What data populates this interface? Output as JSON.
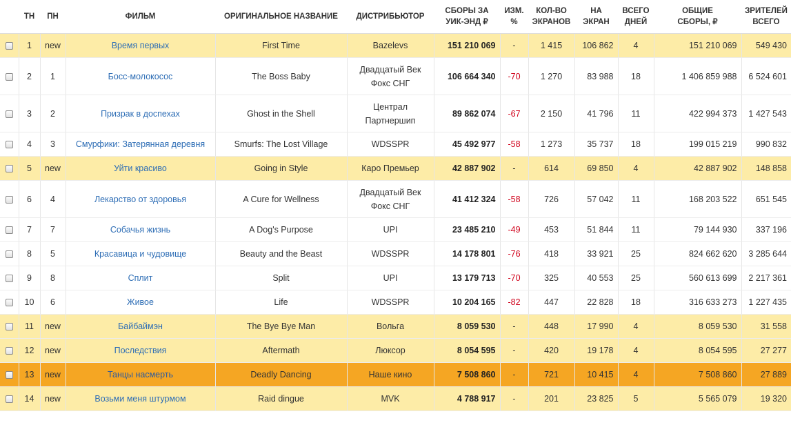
{
  "headers": {
    "tw": "ТН",
    "lw": "ПН",
    "film": "ФИЛЬМ",
    "orig": "ОРИГИНАЛЬНОЕ НАЗВАНИЕ",
    "dist": "ДИСТРИБЬЮТОР",
    "gross_l1": "СБОРЫ ЗА",
    "gross_l2": "УИК-ЭНД ₽",
    "chg_l1": "ИЗМ.",
    "chg_l2": "%",
    "screens_l1": "КОЛ-ВО",
    "screens_l2": "ЭКРАНОВ",
    "avg_l1": "НА",
    "avg_l2": "ЭКРАН",
    "days_l1": "ВСЕГО",
    "days_l2": "ДНЕЙ",
    "total_l1": "ОБЩИЕ",
    "total_l2": "СБОРЫ, ₽",
    "viewers_l1": "ЗРИТЕЛЕЙ",
    "viewers_l2": "ВСЕГО"
  },
  "rows": [
    {
      "tw": "1",
      "lw": "new",
      "film": "Время первых",
      "orig": "First Time",
      "dist": "Bazelevs",
      "gross": "151 210 069",
      "chg": "-",
      "screens": "1 415",
      "avg": "106 862",
      "days": "4",
      "total": "151 210 069",
      "viewers": "549 430"
    },
    {
      "tw": "2",
      "lw": "1",
      "film": "Босс-молокосос",
      "orig": "The Boss Baby",
      "dist": "Двадцатый Век Фокс СНГ",
      "gross": "106 664 340",
      "chg": "-70",
      "screens": "1 270",
      "avg": "83 988",
      "days": "18",
      "total": "1 406 859 988",
      "viewers": "6 524 601"
    },
    {
      "tw": "3",
      "lw": "2",
      "film": "Призрак в доспехах",
      "orig": "Ghost in the Shell",
      "dist": "Централ Партнершип",
      "gross": "89 862 074",
      "chg": "-67",
      "screens": "2 150",
      "avg": "41 796",
      "days": "11",
      "total": "422 994 373",
      "viewers": "1 427 543"
    },
    {
      "tw": "4",
      "lw": "3",
      "film": "Смурфики: Затерянная деревня",
      "orig": "Smurfs: The Lost Village",
      "dist": "WDSSPR",
      "gross": "45 492 977",
      "chg": "-58",
      "screens": "1 273",
      "avg": "35 737",
      "days": "18",
      "total": "199 015 219",
      "viewers": "990 832"
    },
    {
      "tw": "5",
      "lw": "new",
      "film": "Уйти красиво",
      "orig": "Going in Style",
      "dist": "Каро Премьер",
      "gross": "42 887 902",
      "chg": "-",
      "screens": "614",
      "avg": "69 850",
      "days": "4",
      "total": "42 887 902",
      "viewers": "148 858"
    },
    {
      "tw": "6",
      "lw": "4",
      "film": "Лекарство от здоровья",
      "orig": "A Cure for Wellness",
      "dist": "Двадцатый Век Фокс СНГ",
      "gross": "41 412 324",
      "chg": "-58",
      "screens": "726",
      "avg": "57 042",
      "days": "11",
      "total": "168 203 522",
      "viewers": "651 545"
    },
    {
      "tw": "7",
      "lw": "7",
      "film": "Собачья жизнь",
      "orig": "A Dog's Purpose",
      "dist": "UPI",
      "gross": "23 485 210",
      "chg": "-49",
      "screens": "453",
      "avg": "51 844",
      "days": "11",
      "total": "79 144 930",
      "viewers": "337 196"
    },
    {
      "tw": "8",
      "lw": "5",
      "film": "Красавица и чудовище",
      "orig": "Beauty and the Beast",
      "dist": "WDSSPR",
      "gross": "14 178 801",
      "chg": "-76",
      "screens": "418",
      "avg": "33 921",
      "days": "25",
      "total": "824 662 620",
      "viewers": "3 285 644"
    },
    {
      "tw": "9",
      "lw": "8",
      "film": "Сплит",
      "orig": "Split",
      "dist": "UPI",
      "gross": "13 179 713",
      "chg": "-70",
      "screens": "325",
      "avg": "40 553",
      "days": "25",
      "total": "560 613 699",
      "viewers": "2 217 361"
    },
    {
      "tw": "10",
      "lw": "6",
      "film": "Живое",
      "orig": "Life",
      "dist": "WDSSPR",
      "gross": "10 204 165",
      "chg": "-82",
      "screens": "447",
      "avg": "22 828",
      "days": "18",
      "total": "316 633 273",
      "viewers": "1 227 435"
    },
    {
      "tw": "11",
      "lw": "new",
      "film": "Байбаймэн",
      "orig": "The Bye Bye Man",
      "dist": "Вольга",
      "gross": "8 059 530",
      "chg": "-",
      "screens": "448",
      "avg": "17 990",
      "days": "4",
      "total": "8 059 530",
      "viewers": "31 558"
    },
    {
      "tw": "12",
      "lw": "new",
      "film": "Последствия",
      "orig": "Aftermath",
      "dist": "Люксор",
      "gross": "8 054 595",
      "chg": "-",
      "screens": "420",
      "avg": "19 178",
      "days": "4",
      "total": "8 054 595",
      "viewers": "27 277"
    },
    {
      "tw": "13",
      "lw": "new",
      "film": "Танцы насмерть",
      "orig": "Deadly Dancing",
      "dist": "Наше кино",
      "gross": "7 508 860",
      "chg": "-",
      "screens": "721",
      "avg": "10 415",
      "days": "4",
      "total": "7 508 860",
      "viewers": "27 889"
    },
    {
      "tw": "14",
      "lw": "new",
      "film": "Возьми меня штурмом",
      "orig": "Raid dingue",
      "dist": "MVK",
      "gross": "4 788 917",
      "chg": "-",
      "screens": "201",
      "avg": "23 825",
      "days": "5",
      "total": "5 565 079",
      "viewers": "19 320"
    }
  ]
}
